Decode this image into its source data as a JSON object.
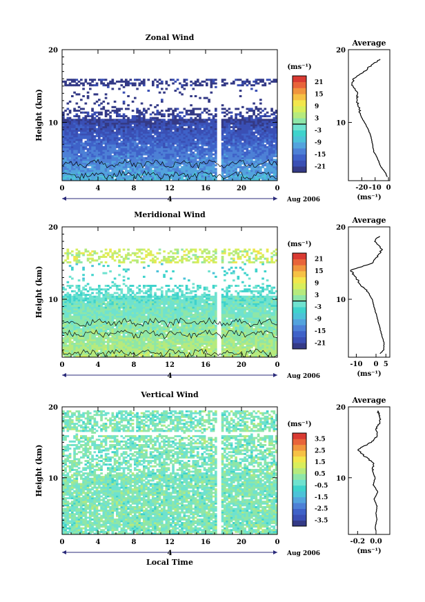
{
  "chart_data": [
    {
      "type": "heatmap",
      "title": "Zonal Wind",
      "ylabel": "Height (km)",
      "xticks": [
        "0",
        "4",
        "8",
        "12",
        "16",
        "20",
        "0"
      ],
      "yticks": [
        "20",
        "10"
      ],
      "ylim": [
        2,
        20
      ],
      "xlim": [
        0,
        24
      ],
      "date_marker": "4",
      "date_label": "Aug 2006",
      "colorbar": {
        "unit": "(ms⁻¹)",
        "ticks": [
          "21",
          "15",
          "9",
          "3",
          "-3",
          "-9",
          "-15",
          "-21"
        ],
        "range": [
          -24,
          24
        ]
      },
      "profile": {
        "title": "Average",
        "xticks": [
          "-20",
          "-10",
          "0"
        ],
        "xunit": "(ms⁻¹)",
        "xlim": [
          -30,
          1
        ],
        "height_km": [
          2.5,
          3,
          4,
          5,
          6,
          7,
          8,
          9,
          10,
          11,
          12,
          13,
          14,
          15,
          16,
          17,
          18,
          18.8
        ],
        "values": [
          -1,
          -2,
          -6,
          -8,
          -11,
          -12,
          -13,
          -15,
          -18,
          -21,
          -22,
          -24,
          -23,
          -27,
          -26,
          -18,
          -12,
          -5
        ]
      },
      "fields": {
        "base_value": -12,
        "gradient_per_km": -1.4,
        "data_top_km": 16,
        "gap_start_km": 12,
        "gap_end_km": 15
      }
    },
    {
      "type": "heatmap",
      "title": "Meridional Wind",
      "ylabel": "Height (km)",
      "xticks": [
        "0",
        "4",
        "8",
        "12",
        "16",
        "20",
        "0"
      ],
      "yticks": [
        "20",
        "10"
      ],
      "ylim": [
        2,
        20
      ],
      "xlim": [
        0,
        24
      ],
      "date_marker": "4",
      "date_label": "Aug 2006",
      "colorbar": {
        "unit": "(ms⁻¹)",
        "ticks": [
          "21",
          "15",
          "9",
          "3",
          "-3",
          "-9",
          "-15",
          "-21"
        ],
        "range": [
          -24,
          24
        ]
      },
      "profile": {
        "title": "Average",
        "xticks": [
          "-10",
          "0",
          "5"
        ],
        "xunit": "(ms⁻¹)",
        "xlim": [
          -14,
          7
        ],
        "height_km": [
          2.5,
          3,
          4,
          5,
          6,
          7,
          8,
          9,
          10,
          11,
          12,
          13,
          14,
          15,
          16,
          17,
          18,
          18.8
        ],
        "values": [
          2,
          4,
          4,
          3,
          2,
          1,
          0,
          -1,
          -2,
          -4,
          -8,
          -10,
          -13,
          -2,
          1,
          3,
          -1,
          2
        ]
      },
      "fields": {
        "base_value": 3,
        "gradient_per_km": -0.8,
        "data_top_km": 17,
        "gap_start_km": 12,
        "gap_end_km": 15
      }
    },
    {
      "type": "heatmap",
      "title": "Vertical Wind",
      "xlabel": "Local Time",
      "ylabel": "Height (km)",
      "xticks": [
        "0",
        "4",
        "8",
        "12",
        "16",
        "20",
        "0"
      ],
      "yticks": [
        "20",
        "10"
      ],
      "ylim": [
        2,
        20
      ],
      "xlim": [
        0,
        24
      ],
      "date_marker": "4",
      "date_label": "Aug 2006",
      "colorbar": {
        "unit": "(ms⁻¹)",
        "ticks": [
          "3.5",
          "2.5",
          "1.5",
          "0.5",
          "-0.5",
          "-1.5",
          "-2.5",
          "-3.5"
        ],
        "range": [
          -4,
          4
        ]
      },
      "profile": {
        "title": "Average",
        "xticks": [
          "-0.2",
          "0.0"
        ],
        "xunit": "(ms⁻¹)",
        "xlim": [
          -0.3,
          0.15
        ],
        "height_km": [
          2.5,
          3,
          4,
          5,
          6,
          7,
          8,
          9,
          10,
          11,
          12,
          13,
          14,
          15,
          16,
          17,
          18,
          19,
          19.5
        ],
        "values": [
          0,
          -0.01,
          0.01,
          0,
          0.01,
          -0.02,
          0.02,
          -0.03,
          -0.01,
          -0.04,
          -0.02,
          -0.12,
          -0.2,
          -0.05,
          0.02,
          0,
          0.05,
          0.03,
          0.02
        ]
      },
      "fields": {
        "base_value": 0.0,
        "gradient_per_km": 0,
        "data_top_km": 19.6,
        "gap_start_km": 16,
        "gap_end_km": 16.6
      }
    }
  ]
}
